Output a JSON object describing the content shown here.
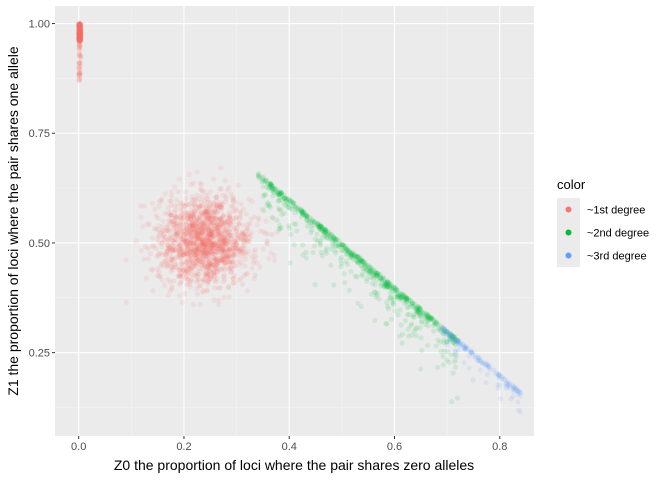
{
  "chart_data": {
    "type": "scatter",
    "xlabel": "Z0 the proportion of loci where the pair shares zero alleles",
    "ylabel": "Z1 the proportion of loci where the pair shares one allele",
    "xlim": [
      -0.045,
      0.865
    ],
    "ylim": [
      0.06,
      1.04
    ],
    "x_ticks": [
      0.0,
      0.2,
      0.4,
      0.6,
      0.8
    ],
    "x_tick_labels": [
      "0.0",
      "0.2",
      "0.4",
      "0.6",
      "0.8"
    ],
    "y_ticks": [
      0.25,
      0.5,
      0.75,
      1.0
    ],
    "y_tick_labels": [
      "0.25",
      "0.50",
      "0.75",
      "1.00"
    ],
    "grid": true,
    "background": "#ebebeb",
    "point_alpha": 0.12,
    "legend": {
      "title": "color",
      "position": "right",
      "entries": [
        {
          "label": "~1st degree",
          "color": "#f8766d"
        },
        {
          "label": "~2nd degree",
          "color": "#00ba38"
        },
        {
          "label": "~3rd degree",
          "color": "#619cff"
        }
      ]
    },
    "series": [
      {
        "name": "~1st degree",
        "color": "#f8766d",
        "clusters": [
          {
            "kind": "column",
            "x_center": 0.002,
            "x_spread": 0.004,
            "y_range": [
              0.87,
              1.0
            ],
            "y_dense_above": 0.96,
            "count": 320
          },
          {
            "kind": "blob",
            "x_center": 0.24,
            "y_center": 0.505,
            "x_sd": 0.045,
            "y_sd": 0.05,
            "x_range": [
              0.09,
              0.4
            ],
            "y_range": [
              0.36,
              0.72
            ],
            "count": 1500
          }
        ]
      },
      {
        "name": "~2nd degree",
        "color": "#00ba38",
        "clusters": [
          {
            "kind": "band",
            "x_range": [
              0.34,
              0.72
            ],
            "line": "y = 1 - x",
            "y_scatter_below": 0.05,
            "count": 700
          }
        ]
      },
      {
        "name": "~3rd degree",
        "color": "#619cff",
        "clusters": [
          {
            "kind": "band",
            "x_range": [
              0.69,
              0.84
            ],
            "line": "y = 1 - x",
            "y_scatter_below": 0.04,
            "count": 140
          }
        ]
      }
    ]
  }
}
